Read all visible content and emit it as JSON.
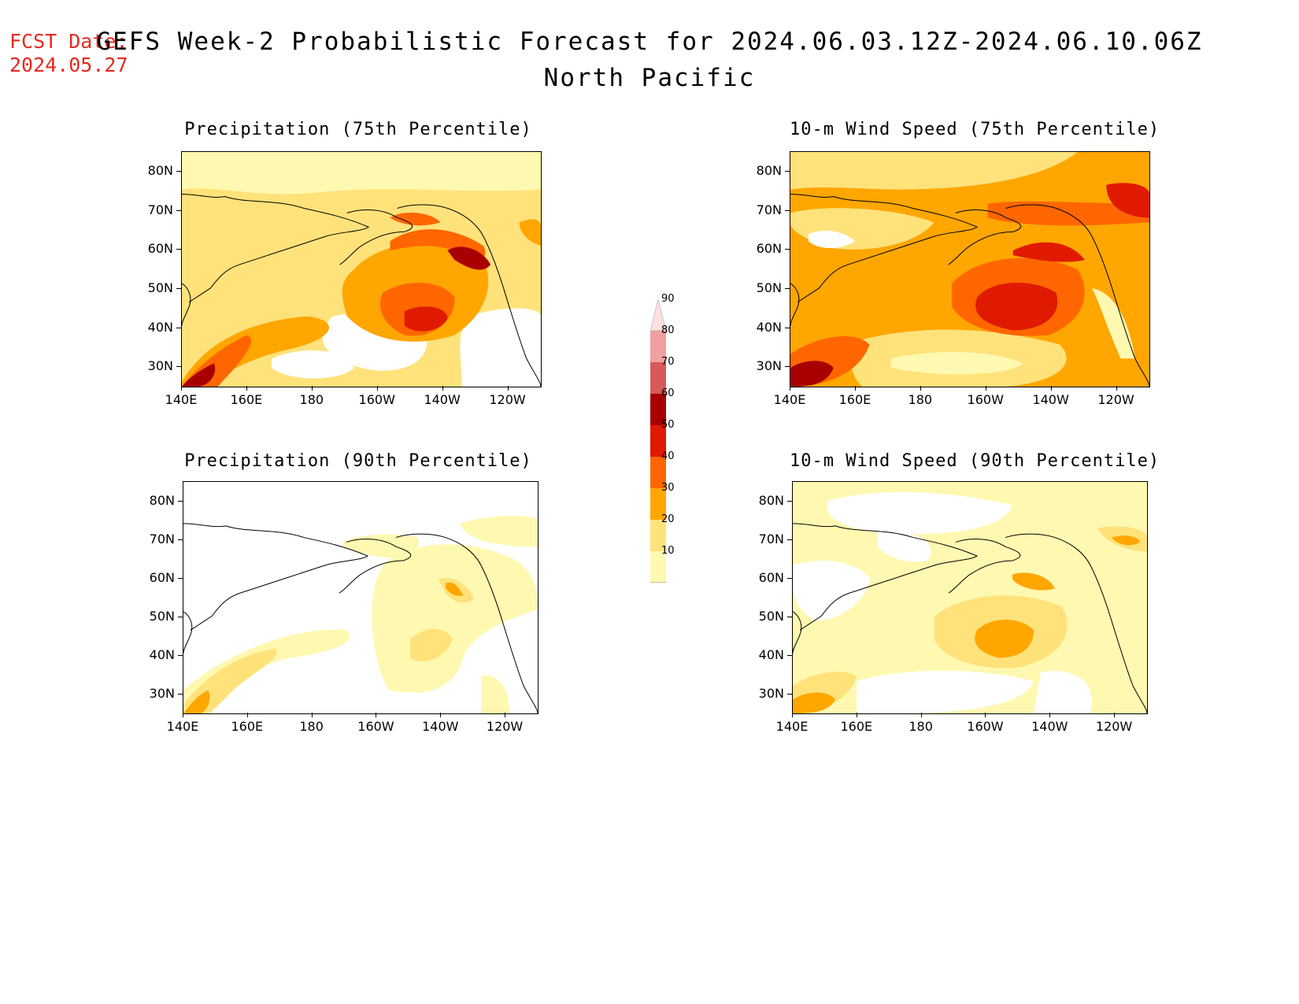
{
  "header": {
    "fcst_label": "FCST Date:",
    "fcst_date": "2024.05.27",
    "title_line1": "GEFS Week-2 Probabilistic Forecast for 2024.06.03.12Z-2024.06.10.06Z",
    "title_line2": "North Pacific"
  },
  "axes": {
    "lat_labels": [
      "80N",
      "70N",
      "60N",
      "50N",
      "40N",
      "30N"
    ],
    "lon_labels": [
      "140E",
      "160E",
      "180",
      "160W",
      "140W",
      "120W"
    ]
  },
  "panels": [
    {
      "id": "precip75",
      "title": "Precipitation (75th Percentile)"
    },
    {
      "id": "wind75",
      "title": "10-m Wind Speed (75th Percentile)"
    },
    {
      "id": "precip90",
      "title": "Precipitation (90th Percentile)"
    },
    {
      "id": "wind90",
      "title": "10-m Wind Speed (90th Percentile)"
    }
  ],
  "colorbar": {
    "levels": [
      "10",
      "20",
      "30",
      "40",
      "50",
      "60",
      "70",
      "80",
      "90"
    ],
    "colors": [
      "#fff8b0",
      "#ffe27a",
      "#ffa600",
      "#ff6600",
      "#e01a00",
      "#a80000",
      "#d65a5a",
      "#f0a0a0",
      "#fde0e0"
    ]
  }
}
